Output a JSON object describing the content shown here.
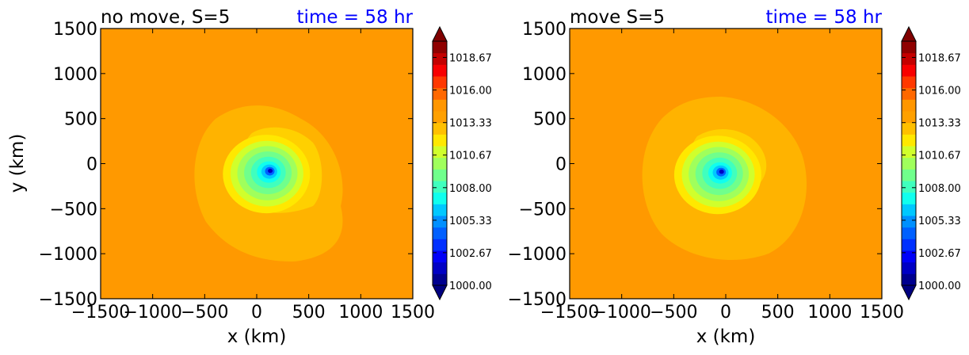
{
  "chart_data": [
    {
      "type": "heatmap",
      "title": "no move, S=5",
      "time_label": "time = 58 hr",
      "xlabel": "x (km)",
      "ylabel": "y (km)",
      "xlim": [
        -1500,
        1500
      ],
      "ylim": [
        -1500,
        1500
      ],
      "xticks": [
        "−1500",
        "−1000",
        "−500",
        "0",
        "500",
        "1000",
        "1500"
      ],
      "yticks": [
        "1500",
        "1000",
        "500",
        "0",
        "−500",
        "−1000",
        "−1500"
      ],
      "center_km": [
        130,
        -80
      ],
      "min_value": 1000.2,
      "background_value": 1015.6
    },
    {
      "type": "heatmap",
      "title": "move S=5",
      "time_label": "time = 58 hr",
      "xlabel": "x (km)",
      "ylabel": "",
      "xlim": [
        -1500,
        1500
      ],
      "ylim": [
        -1500,
        1500
      ],
      "xticks": [
        "−1500",
        "−1000",
        "−500",
        "0",
        "500",
        "1000",
        "1500"
      ],
      "yticks": [
        "1500",
        "1000",
        "500",
        "0",
        "−500",
        "−1000",
        "−1500"
      ],
      "center_km": [
        -40,
        -90
      ],
      "min_value": 1000.2,
      "background_value": 1015.6
    }
  ],
  "colorbar": {
    "min": 1000.0,
    "max": 1020.0,
    "tick_labels": [
      "1018.67",
      "1016.00",
      "1013.33",
      "1010.67",
      "1008.00",
      "1005.33",
      "1002.67",
      "1000.00"
    ],
    "colors": [
      "#00008f",
      "#0000c4",
      "#0000f8",
      "#0030ff",
      "#0060ff",
      "#0090ff",
      "#00c8ff",
      "#10ffee",
      "#40ffbe",
      "#70ff8c",
      "#a0ff5c",
      "#d0ff2c",
      "#ffe800",
      "#ffc000",
      "#ffa000",
      "#ff9600",
      "#ff6800",
      "#ff3800",
      "#f80000",
      "#c40000",
      "#8f0000"
    ]
  },
  "colors": {
    "time_label": "#0000ff"
  }
}
